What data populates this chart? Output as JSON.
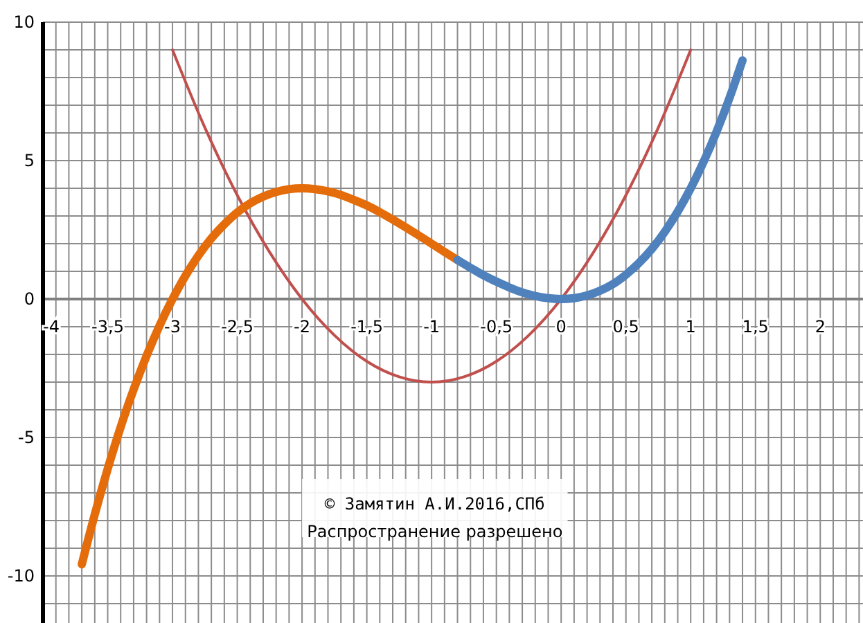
{
  "chart_data": {
    "type": "line",
    "xlim": [
      -4,
      2.33
    ],
    "ylim": [
      -11.7,
      10
    ],
    "xticks": [
      -4,
      {
        "value": -3.5,
        "label": "-3,5"
      },
      -3,
      {
        "value": -2.5,
        "label": "-2,5"
      },
      -2,
      {
        "value": -1.5,
        "label": "-1,5"
      },
      -1,
      {
        "value": -0.5,
        "label": "-0,5"
      },
      0,
      {
        "value": 0.5,
        "label": "0,5"
      },
      1,
      {
        "value": 1.5,
        "label": "1,5"
      },
      2
    ],
    "yticks": [
      -10,
      -5,
      0,
      5,
      10
    ],
    "grid": true,
    "marker": "none",
    "line_style": "solid",
    "annotations": [
      "© Замятин А.И.2016,СПб",
      "Распространение разрешено"
    ],
    "series": [
      {
        "color": "#c0504d",
        "x": [
          -3,
          -2.75,
          -2.5,
          -2.25,
          -2,
          -1.75,
          -1.5,
          -1.25,
          -1,
          -0.75,
          -0.5,
          -0.25,
          0,
          0.25,
          0.5,
          0.75,
          1
        ],
        "values": [
          9,
          6.19,
          3.75,
          1.69,
          0,
          -1.31,
          -2.25,
          -2.81,
          -3,
          -2.81,
          -2.25,
          -1.31,
          0,
          1.69,
          3.75,
          6.19,
          9
        ]
      },
      {
        "color": "#e46c0a",
        "x": [
          -3.7,
          -3.6,
          -3.5,
          -3.4,
          -3.3,
          -3.2,
          -3.1,
          -3,
          -2.9,
          -2.8,
          -2.7,
          -2.6,
          -2.5,
          -2.4,
          -2.3,
          -2.2,
          -2.1,
          -2,
          -1.9,
          -1.8,
          -1.7,
          -1.6,
          -1.5,
          -1.4,
          -1.3,
          -1.2,
          -1.1,
          -1,
          -0.9,
          -0.8
        ],
        "values": [
          -9.58,
          -7.78,
          -6.13,
          -4.62,
          -3.27,
          -2.05,
          -0.96,
          0,
          0.84,
          1.57,
          2.19,
          2.7,
          3.13,
          3.46,
          3.7,
          3.87,
          3.97,
          4,
          3.97,
          3.89,
          3.76,
          3.58,
          3.38,
          3.14,
          2.87,
          2.59,
          2.3,
          2,
          1.7,
          1.41
        ]
      },
      {
        "color": "#4f81bd",
        "x": [
          -0.8,
          -0.7,
          -0.6,
          -0.5,
          -0.4,
          -0.3,
          -0.2,
          -0.1,
          0,
          0.1,
          0.2,
          0.3,
          0.4,
          0.5,
          0.6,
          0.7,
          0.8,
          0.9,
          1,
          1.1,
          1.2,
          1.3,
          1.4
        ],
        "values": [
          1.41,
          1.13,
          0.86,
          0.63,
          0.42,
          0.24,
          0.11,
          0.03,
          0,
          0.03,
          0.13,
          0.3,
          0.54,
          0.88,
          1.3,
          1.81,
          2.43,
          3.16,
          4,
          4.96,
          6.05,
          7.27,
          8.62
        ]
      }
    ]
  }
}
